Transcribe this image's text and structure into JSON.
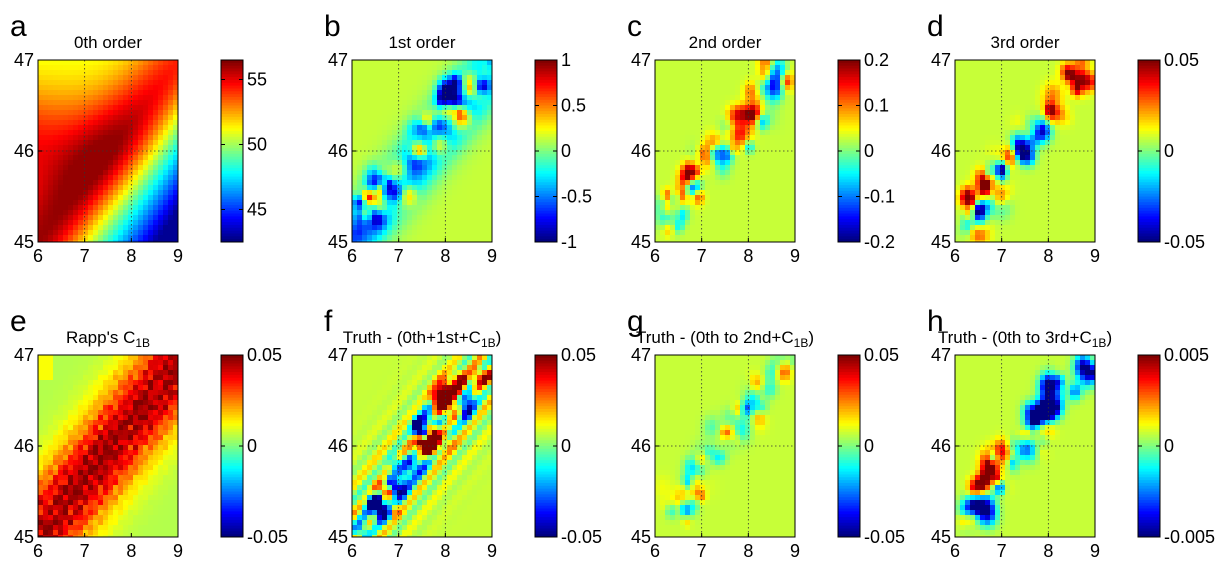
{
  "chart_data": [
    {
      "type": "heatmap",
      "panel": "a",
      "title": "0th order",
      "x_ticks": [
        "6",
        "7",
        "8",
        "9"
      ],
      "y_ticks": [
        "45",
        "46",
        "47"
      ],
      "xlim": [
        6,
        9
      ],
      "ylim": [
        45,
        47
      ],
      "colorbar": {
        "range": [
          42.5,
          56.5
        ],
        "ticks": [
          "45",
          "50",
          "55"
        ],
        "tick_values": [
          45,
          50,
          55
        ]
      },
      "grid": true
    },
    {
      "type": "heatmap",
      "panel": "b",
      "title": "1st order",
      "x_ticks": [
        "6",
        "7",
        "8",
        "9"
      ],
      "y_ticks": [
        "45",
        "46",
        "47"
      ],
      "xlim": [
        6,
        9
      ],
      "ylim": [
        45,
        47
      ],
      "colorbar": {
        "range": [
          -1,
          1
        ],
        "ticks": [
          "1",
          "0.5",
          "0",
          "-0.5",
          "-1"
        ],
        "tick_values": [
          1,
          0.5,
          0,
          -0.5,
          -1
        ]
      },
      "grid": true
    },
    {
      "type": "heatmap",
      "panel": "c",
      "title": "2nd order",
      "x_ticks": [
        "6",
        "7",
        "8",
        "9"
      ],
      "y_ticks": [
        "45",
        "46",
        "47"
      ],
      "xlim": [
        6,
        9
      ],
      "ylim": [
        45,
        47
      ],
      "colorbar": {
        "range": [
          -0.2,
          0.2
        ],
        "ticks": [
          "0.2",
          "0.1",
          "0",
          "-0.1",
          "-0.2"
        ],
        "tick_values": [
          0.2,
          0.1,
          0,
          -0.1,
          -0.2
        ]
      },
      "grid": true
    },
    {
      "type": "heatmap",
      "panel": "d",
      "title": "3rd order",
      "x_ticks": [
        "6",
        "7",
        "8",
        "9"
      ],
      "y_ticks": [
        "45",
        "46",
        "47"
      ],
      "xlim": [
        6,
        9
      ],
      "ylim": [
        45,
        47
      ],
      "colorbar": {
        "range": [
          -0.05,
          0.05
        ],
        "ticks": [
          "0.05",
          "0",
          "-0.05"
        ],
        "tick_values": [
          0.05,
          0,
          -0.05
        ]
      },
      "grid": true
    },
    {
      "type": "heatmap",
      "panel": "e",
      "title": "Rapp's C",
      "title_sub": "1B",
      "title_after": "",
      "x_ticks": [
        "6",
        "7",
        "8",
        "9"
      ],
      "y_ticks": [
        "45",
        "46",
        "47"
      ],
      "xlim": [
        6,
        9
      ],
      "ylim": [
        45,
        47
      ],
      "colorbar": {
        "range": [
          -0.05,
          0.05
        ],
        "ticks": [
          "0.05",
          "0",
          "-0.05"
        ],
        "tick_values": [
          0.05,
          0,
          -0.05
        ]
      },
      "grid": false
    },
    {
      "type": "heatmap",
      "panel": "f",
      "title": "Truth - (0th+1st+C",
      "title_sub": "1B",
      "title_after": ")",
      "x_ticks": [
        "6",
        "7",
        "8",
        "9"
      ],
      "y_ticks": [
        "45",
        "46",
        "47"
      ],
      "xlim": [
        6,
        9
      ],
      "ylim": [
        45,
        47
      ],
      "colorbar": {
        "range": [
          -0.05,
          0.05
        ],
        "ticks": [
          "0.05",
          "0",
          "-0.05"
        ],
        "tick_values": [
          0.05,
          0,
          -0.05
        ]
      },
      "grid": true
    },
    {
      "type": "heatmap",
      "panel": "g",
      "title": "Truth - (0th to 2nd+C",
      "title_sub": "1B",
      "title_after": ")",
      "x_ticks": [
        "6",
        "7",
        "8",
        "9"
      ],
      "y_ticks": [
        "45",
        "46",
        "47"
      ],
      "xlim": [
        6,
        9
      ],
      "ylim": [
        45,
        47
      ],
      "colorbar": {
        "range": [
          -0.05,
          0.05
        ],
        "ticks": [
          "0.05",
          "0",
          "-0.05"
        ],
        "tick_values": [
          0.05,
          0,
          -0.05
        ]
      },
      "grid": true
    },
    {
      "type": "heatmap",
      "panel": "h",
      "title": "Truth - (0th to 3rd+C",
      "title_sub": "1B",
      "title_after": ")",
      "x_ticks": [
        "6",
        "7",
        "8",
        "9"
      ],
      "y_ticks": [
        "45",
        "46",
        "47"
      ],
      "xlim": [
        6,
        9
      ],
      "ylim": [
        45,
        47
      ],
      "colorbar": {
        "range": [
          -0.005,
          0.005
        ],
        "ticks": [
          "0.005",
          "0",
          "-0.005"
        ],
        "tick_values": [
          0.005,
          0,
          -0.005
        ]
      },
      "grid": true
    }
  ],
  "colormap": "jet"
}
